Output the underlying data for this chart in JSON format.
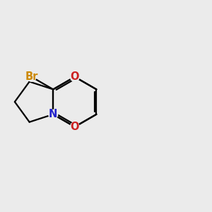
{
  "bg_color": "#ebebeb",
  "bond_color": "#000000",
  "N_color": "#2222cc",
  "O_color": "#cc2222",
  "Br_color": "#cc8800",
  "Br_label": "Br",
  "N_label": "N",
  "O_label": "O",
  "figsize": [
    3.0,
    3.0
  ],
  "dpi": 100
}
